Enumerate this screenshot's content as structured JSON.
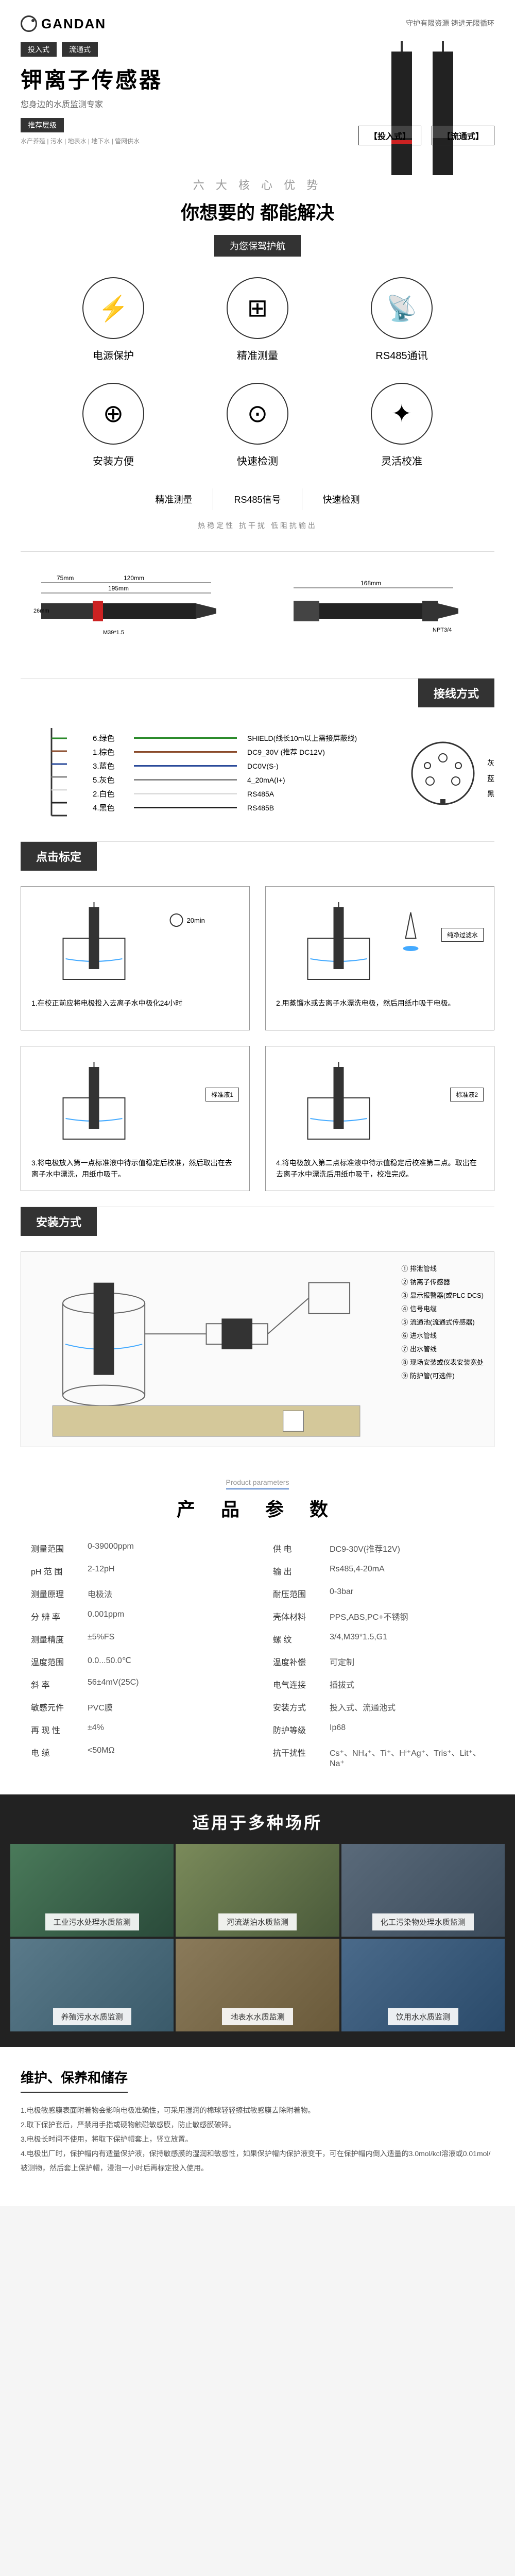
{
  "header": {
    "logo": "GANDAN",
    "tagline": "守护有限资源 铸进无限循环",
    "badges": [
      "投入式",
      "流通式"
    ],
    "title": "钾离子传感器",
    "subtitle": "您身边的水质监测专家",
    "rec_badge": "推荐层级",
    "rec_text": "水产养殖 | 污水 | 地表水 | 地下水 | 管网供水",
    "type_labels": [
      "【投入式】",
      "【流通式】"
    ]
  },
  "advantages": {
    "title1": "六 大 核 心 优 势",
    "title2": "你想要的  都能解决",
    "subtitle": "为您保驾护航",
    "items": [
      {
        "icon": "⚡",
        "label": "电源保护"
      },
      {
        "icon": "⊞",
        "label": "精准测量"
      },
      {
        "icon": "📡",
        "label": "RS485通讯"
      },
      {
        "icon": "⊕",
        "label": "安装方便"
      },
      {
        "icon": "⊙",
        "label": "快速检测"
      },
      {
        "icon": "✦",
        "label": "灵活校准"
      }
    ],
    "tags": [
      "精准测量",
      "RS485信号",
      "快速检测"
    ],
    "footer": "热稳定性    抗干扰    低阻抗输出"
  },
  "dimensions": {
    "left": {
      "total": "195mm",
      "seg1": "75mm",
      "seg2": "120mm",
      "thread": "M39*1.5",
      "dia": "26mm"
    },
    "right": {
      "total": "168mm",
      "thread": "NPT3/4"
    }
  },
  "wiring": {
    "title": "接线方式",
    "wires": [
      {
        "label": "6.绿色",
        "color": "#2a8a2a",
        "desc": "SHIELD(线长10m以上需接屏蔽线)"
      },
      {
        "label": "1.棕色",
        "color": "#8a4a2a",
        "desc": "DC9_30V (推荐 DC12V)"
      },
      {
        "label": "3.蓝色",
        "color": "#2a4a9a",
        "desc": "DC0V(S-)"
      },
      {
        "label": "5.灰色",
        "color": "#888",
        "desc": "4_20mA(I+)"
      },
      {
        "label": "2.白色",
        "color": "#ddd",
        "desc": "RS485A"
      },
      {
        "label": "4.黑色",
        "color": "#222",
        "desc": "RS485B"
      }
    ],
    "connector_labels": [
      "灰",
      "蓝",
      "黑"
    ]
  },
  "calibration": {
    "title": "点击标定",
    "steps": [
      {
        "text": "1.在校正前应将电极投入去离子水中极化24小时"
      },
      {
        "text": "2.用蒸馏水或去离子水漂洗电极，然后用纸巾吸干电极。",
        "badge": "纯净过滤水"
      },
      {
        "text": "3.将电极放入第一点标准液中待示值稳定后校准，然后取出在去离子水中漂洗，用纸巾吸干。",
        "badge": "标准液1"
      },
      {
        "text": "4.将电极放入第二点标准液中待示值稳定后校准第二点。取出在去离子水中漂洗后用纸巾吸干，校准完成。",
        "badge": "标准液2"
      }
    ]
  },
  "installation": {
    "title": "安装方式",
    "legend": [
      "① 排泄管线",
      "② 钠离子传感器",
      "③ 显示报警器(或PLC DCS)",
      "④ 信号电缆",
      "⑤ 流通池(流通式传感器)",
      "⑥ 进水管线",
      "⑦ 出水管线",
      "⑧ 现场安装或仪表安装宽处",
      "⑨ 防护管(可选件)"
    ]
  },
  "params": {
    "title_en": "Product parameters",
    "title_cn": "产 品 参 数",
    "rows": [
      {
        "label": "测量范围",
        "value": "0-39000ppm"
      },
      {
        "label": "供   电",
        "value": "DC9-30V(推荐12V)"
      },
      {
        "label": "pH 范 围",
        "value": "2-12pH"
      },
      {
        "label": "输   出",
        "value": "Rs485,4-20mA"
      },
      {
        "label": "测量原理",
        "value": "电极法"
      },
      {
        "label": "耐压范围",
        "value": "0-3bar"
      },
      {
        "label": "分 辨 率",
        "value": "0.001ppm"
      },
      {
        "label": "壳体材料",
        "value": "PPS,ABS,PC+不锈钢"
      },
      {
        "label": "测量精度",
        "value": "±5%FS"
      },
      {
        "label": "螺   纹",
        "value": "3/4,M39*1.5,G1"
      },
      {
        "label": "温度范围",
        "value": "0.0...50.0℃"
      },
      {
        "label": "温度补偿",
        "value": "可定制"
      },
      {
        "label": "斜   率",
        "value": "56±4mV(25C)"
      },
      {
        "label": "电气连接",
        "value": "插拔式"
      },
      {
        "label": "敏感元件",
        "value": "PVC膜"
      },
      {
        "label": "安装方式",
        "value": "投入式、流通池式"
      },
      {
        "label": "再 现 性",
        "value": "±4%"
      },
      {
        "label": "防护等级",
        "value": "Ip68"
      },
      {
        "label": "电   缆",
        "value": "<50MΩ"
      },
      {
        "label": "抗干扰性",
        "value": "Cs⁺、NH₄⁺、Ti⁺、Hⁱ⁺Ag⁺、Tris⁺、Lit⁺、Na⁺"
      }
    ]
  },
  "applications": {
    "title": "适用于多种场所",
    "items": [
      "工业污水处理水质监测",
      "河流湖泊水质监测",
      "化工污染物处理水质监测",
      "养殖污水水质监测",
      "地表水水质监测",
      "饮用水水质监测"
    ]
  },
  "maintenance": {
    "title": "维护、保养和储存",
    "text": "1.电极敏感膜表面附着物会影响电极准确性，可采用湿润的棉球轻轻擦拭敏感膜去除附着物。\n2.取下保护套后，严禁用手指或硬物触碰敏感膜，防止敏感膜破碎。\n3.电极长时间不使用，将取下保护帽套上，竖立放置。\n4.电极出厂时，保护帽内有适量保护液，保持敏感膜的湿润和敏感性，如果保护帽内保护液变干，可在保护帽内倒入适量的3.0mol/kcl溶液或0.01mol/被测物，然后套上保护帽，浸泡一小时后再标定投入使用。"
  }
}
